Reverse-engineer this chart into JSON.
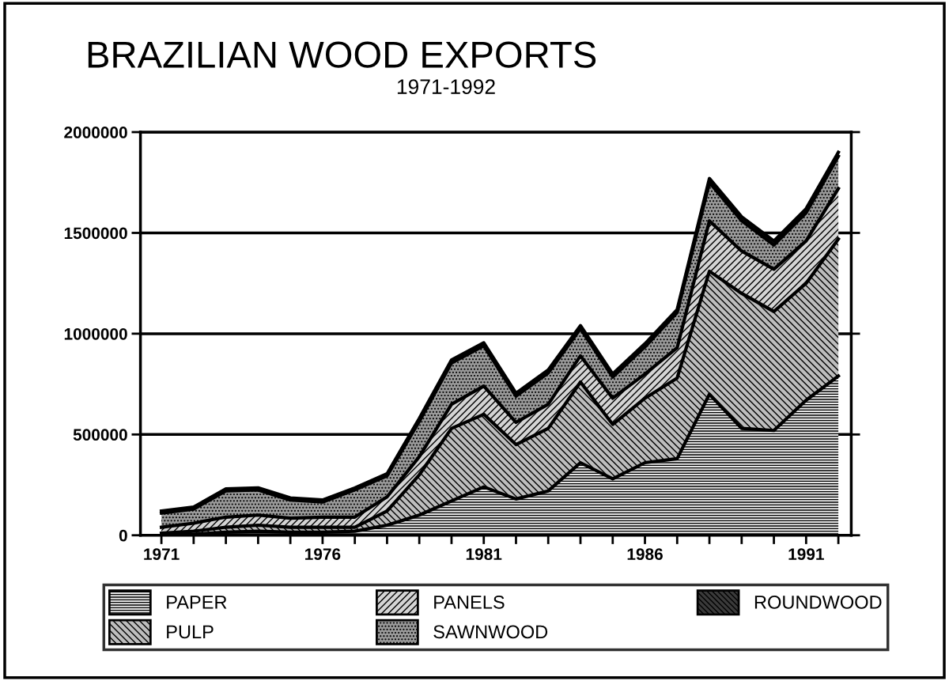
{
  "chart_data": {
    "type": "area",
    "stacked": true,
    "title": "BRAZILIAN WOOD EXPORTS",
    "subtitle": "1971-1992",
    "x": [
      1971,
      1972,
      1973,
      1974,
      1975,
      1976,
      1977,
      1978,
      1979,
      1980,
      1981,
      1982,
      1983,
      1984,
      1985,
      1986,
      1987,
      1988,
      1989,
      1990,
      1991,
      1992
    ],
    "series": [
      {
        "name": "PAPER",
        "color": "#e6e6e6",
        "values": [
          2000,
          5000,
          15000,
          20000,
          15000,
          15000,
          20000,
          50000,
          100000,
          170000,
          240000,
          180000,
          220000,
          360000,
          280000,
          360000,
          380000,
          700000,
          530000,
          520000,
          670000,
          790000
        ]
      },
      {
        "name": "PULP",
        "color": "#bdbdbd",
        "values": [
          8000,
          15000,
          25000,
          30000,
          25000,
          25000,
          20000,
          70000,
          200000,
          360000,
          360000,
          270000,
          310000,
          400000,
          270000,
          320000,
          400000,
          610000,
          670000,
          590000,
          580000,
          680000
        ]
      },
      {
        "name": "PANELS",
        "color": "#d4d4d4",
        "values": [
          30000,
          40000,
          50000,
          50000,
          45000,
          50000,
          50000,
          70000,
          90000,
          120000,
          140000,
          110000,
          120000,
          130000,
          130000,
          120000,
          150000,
          250000,
          210000,
          210000,
          210000,
          250000
        ]
      },
      {
        "name": "SAWNWOOD",
        "color": "#9a9a9a",
        "values": [
          70000,
          70000,
          130000,
          125000,
          90000,
          75000,
          135000,
          105000,
          175000,
          205000,
          200000,
          130000,
          155000,
          135000,
          105000,
          135000,
          175000,
          190000,
          150000,
          120000,
          140000,
          160000
        ]
      },
      {
        "name": "ROUNDWOOD",
        "color": "#3a3a3a",
        "values": [
          10000,
          10000,
          10000,
          10000,
          10000,
          10000,
          10000,
          10000,
          15000,
          15000,
          15000,
          15000,
          15000,
          15000,
          15000,
          15000,
          15000,
          20000,
          20000,
          20000,
          20000,
          20000
        ]
      }
    ],
    "xlim": [
      1970.35,
      1992.4
    ],
    "xticks": [
      1971,
      {
        "value": 1972,
        "label": null
      },
      {
        "value": 1973,
        "label": null
      },
      {
        "value": 1974,
        "label": null
      },
      {
        "value": 1975,
        "label": null
      },
      1976,
      {
        "value": 1977,
        "label": null
      },
      {
        "value": 1978,
        "label": null
      },
      {
        "value": 1979,
        "label": null
      },
      {
        "value": 1980,
        "label": null
      },
      1981,
      {
        "value": 1982,
        "label": null
      },
      {
        "value": 1983,
        "label": null
      },
      {
        "value": 1984,
        "label": null
      },
      {
        "value": 1985,
        "label": null
      },
      1986,
      {
        "value": 1987,
        "label": null
      },
      {
        "value": 1988,
        "label": null
      },
      {
        "value": 1989,
        "label": null
      },
      {
        "value": 1990,
        "label": null
      },
      1991,
      {
        "value": 1992,
        "label": null
      }
    ],
    "ylim": [
      0,
      2000000
    ],
    "yticks": [
      0,
      500000,
      1000000,
      1500000,
      2000000
    ],
    "grid": "y",
    "legend": "bottom"
  }
}
